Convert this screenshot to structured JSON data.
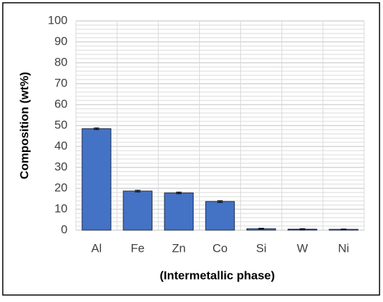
{
  "chart_data": {
    "type": "bar",
    "categories": [
      "Al",
      "Fe",
      "Zn",
      "Co",
      "Si",
      "W",
      "Ni"
    ],
    "values": [
      48.5,
      18.7,
      17.8,
      13.7,
      0.7,
      0.5,
      0.4
    ],
    "errors": [
      0.4,
      0.4,
      0.4,
      0.4,
      0.2,
      0.2,
      0.2
    ],
    "color": "#4472c4",
    "ylim": [
      0,
      100
    ],
    "yticks": [
      0,
      10,
      20,
      30,
      40,
      50,
      60,
      70,
      80,
      90,
      100
    ],
    "grid": true,
    "minor_grid_step": 2,
    "ylabel": "Composition (wt%)",
    "xlabel": "(Intermetallic phase)"
  }
}
